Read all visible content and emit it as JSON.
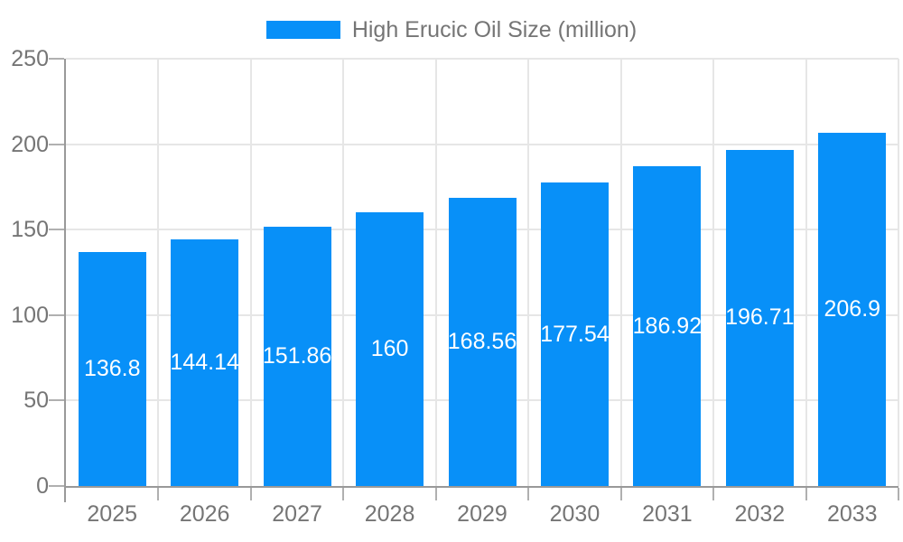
{
  "legend": {
    "position": "top"
  },
  "chart_data": {
    "type": "bar",
    "title": "High Erucic Oil Size (million)",
    "categories": [
      "2025",
      "2026",
      "2027",
      "2028",
      "2029",
      "2030",
      "2031",
      "2032",
      "2033"
    ],
    "series": [
      {
        "name": "High Erucic Oil Size (million)",
        "values": [
          136.8,
          144.14,
          151.86,
          160,
          168.56,
          177.54,
          186.92,
          196.71,
          206.9
        ],
        "value_labels": [
          "136.8",
          "144.14",
          "151.86",
          "160",
          "168.56",
          "177.54",
          "186.92",
          "196.71",
          "206.9"
        ]
      }
    ],
    "xlabel": "",
    "ylabel": "",
    "ylim": [
      0,
      250
    ],
    "yticks": [
      0,
      50,
      100,
      150,
      200,
      250
    ],
    "grid": true,
    "legend_position": "top",
    "colors": {
      "bar": "#0890f8",
      "grid": "#e6e6e6",
      "axis": "#999999",
      "tick": "#b0b0b0",
      "text": "#757575",
      "bar_label": "#ffffff",
      "background": "#ffffff"
    }
  }
}
